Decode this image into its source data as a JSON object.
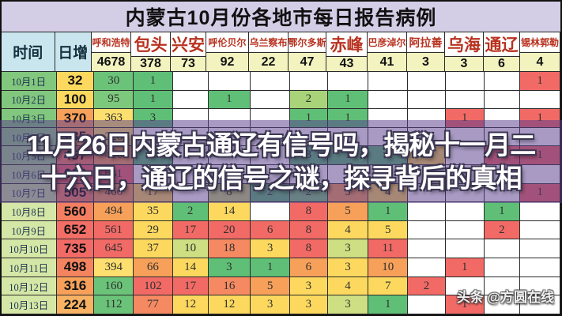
{
  "chart_data": {
    "type": "table",
    "title": "内蒙古10月份各地市每日报告病例",
    "time_label": "时间",
    "daily_label": "日增",
    "cities": [
      {
        "name": "呼和浩特",
        "total": "4678"
      },
      {
        "name": "包头",
        "total": "378"
      },
      {
        "name": "兴安",
        "total": "73"
      },
      {
        "name": "呼伦贝尔",
        "total": "92"
      },
      {
        "name": "乌兰察布",
        "total": "22"
      },
      {
        "name": "鄂尔多斯",
        "total": "47"
      },
      {
        "name": "赤峰",
        "total": "43"
      },
      {
        "name": "巴彦淖尔",
        "total": "41"
      },
      {
        "name": "阿拉善",
        "total": "3"
      },
      {
        "name": "乌海",
        "total": "3"
      },
      {
        "name": "通辽",
        "total": "6"
      },
      {
        "name": "锡林郭勒",
        "total": "4"
      }
    ],
    "rows": [
      {
        "date": "10月1日",
        "date_bg": "#82c77e",
        "daily": "32",
        "daily_bg": "#fcd95e",
        "cells": [
          {
            "v": "30",
            "bg": "#6ac379"
          },
          {
            "v": "1",
            "bg": "#5fbf77"
          },
          null,
          null,
          null,
          null,
          null,
          null,
          null,
          null,
          null,
          {
            "v": "1",
            "bg": "#f26a66"
          }
        ]
      },
      {
        "date": "10月2日",
        "date_bg": "#82c77e",
        "daily": "100",
        "daily_bg": "#fcd95e",
        "cells": [
          {
            "v": "95",
            "bg": "#7cc87c"
          },
          {
            "v": "1",
            "bg": "#5fbf77"
          },
          null,
          {
            "v": "1",
            "bg": "#5fbf77"
          },
          null,
          {
            "v": "2",
            "bg": "#a8d378"
          },
          {
            "v": "1",
            "bg": "#5fbf77"
          },
          null,
          null,
          null,
          null,
          null
        ]
      },
      {
        "date": "10月3日",
        "date_bg": "#82c77e",
        "daily": "370",
        "daily_bg": "#f6a05a",
        "cells": [
          {
            "v": "363",
            "bg": "#fcdf6e"
          },
          {
            "v": "3",
            "bg": "#5fbf77"
          },
          null,
          null,
          null,
          {
            "v": "1",
            "bg": "#5fbf77"
          },
          {
            "v": "1",
            "bg": "#5fbf77"
          },
          null,
          null,
          {
            "v": "1",
            "bg": "#f26a66"
          },
          null,
          {
            "v": "1",
            "bg": "#f26a66"
          }
        ]
      },
      {
        "date": "10月4日",
        "date_bg": "#90cc86",
        "daily": "235",
        "daily_bg": "#f6a05a",
        "cells": [
          {
            "v": "226",
            "bg": "#fcdf6e"
          },
          null,
          null,
          null,
          null,
          null,
          null,
          null,
          null,
          null,
          null,
          null
        ]
      },
      {
        "date": "10月5日",
        "date_bg": "#9fd28e",
        "daily": "457",
        "daily_bg": "#f47f60",
        "cells": [
          {
            "v": "446",
            "bg": "#f6a05a"
          },
          {
            "v": "1",
            "bg": "#5fbf77"
          },
          null,
          null,
          null,
          {
            "v": "3",
            "bg": "#5fbf77"
          },
          {
            "v": "1",
            "bg": "#5fbf77"
          },
          {
            "v": "2",
            "bg": "#5fbf77"
          },
          {
            "v": "1",
            "bg": "#fcd95e"
          },
          null,
          {
            "v": "2",
            "bg": "#f26a66"
          },
          {
            "v": "1",
            "bg": "#f26a66"
          }
        ]
      },
      {
        "date": "10月6日",
        "date_bg": "#b2d896",
        "daily": "668",
        "daily_bg": "#f26a66",
        "cells": [
          {
            "v": "631",
            "bg": "#f26a66"
          },
          null,
          null,
          null,
          null,
          null,
          null,
          null,
          null,
          null,
          null,
          null
        ]
      },
      {
        "date": "10月7日",
        "date_bg": "#c4df9e",
        "daily": "505",
        "daily_bg": "#f4845f",
        "cells": [
          {
            "v": "466",
            "bg": "#f6a05a"
          },
          {
            "v": "17",
            "bg": "#fcd95e"
          },
          null,
          {
            "v": "8",
            "bg": "#c6da7a"
          },
          {
            "v": "2",
            "bg": "#5fbf77"
          },
          {
            "v": "2",
            "bg": "#7cc87c"
          },
          {
            "v": "5",
            "bg": "#f6a05a"
          },
          {
            "v": "4",
            "bg": "#fcd95e"
          },
          null,
          null,
          null,
          {
            "v": "1",
            "bg": "#f26a66"
          }
        ]
      },
      {
        "date": "10月8日",
        "date_bg": "#d5e7a6",
        "daily": "560",
        "daily_bg": "#f47f60",
        "cells": [
          {
            "v": "494",
            "bg": "#f6a05a"
          },
          {
            "v": "35",
            "bg": "#fcd95e"
          },
          {
            "v": "2",
            "bg": "#5fbf77"
          },
          {
            "v": "14",
            "bg": "#fcd95e"
          },
          null,
          {
            "v": "8",
            "bg": "#f26a66"
          },
          {
            "v": "5",
            "bg": "#f6a05a"
          },
          {
            "v": "1",
            "bg": "#5fbf77"
          },
          null,
          null,
          {
            "v": "1",
            "bg": "#5fbf77"
          },
          null
        ]
      },
      {
        "date": "10月9日",
        "date_bg": "#d5e7a6",
        "daily": "652",
        "daily_bg": "#f26e66",
        "cells": [
          {
            "v": "561",
            "bg": "#f26a66"
          },
          {
            "v": "29",
            "bg": "#fcd95e"
          },
          {
            "v": "17",
            "bg": "#f26a66"
          },
          {
            "v": "20",
            "bg": "#f26a66"
          },
          {
            "v": "6",
            "bg": "#f26a66"
          },
          {
            "v": "8",
            "bg": "#f26a66"
          },
          {
            "v": "4",
            "bg": "#fcd95e"
          },
          {
            "v": "5",
            "bg": "#fcd95e"
          },
          null,
          null,
          {
            "v": "2",
            "bg": "#f26a66"
          },
          null
        ]
      },
      {
        "date": "10月10日",
        "date_bg": "#d5e7a6",
        "daily": "735",
        "daily_bg": "#f26a66",
        "cells": [
          {
            "v": "645",
            "bg": "#f26a66"
          },
          {
            "v": "37",
            "bg": "#fcd95e"
          },
          {
            "v": "10",
            "bg": "#cede82"
          },
          {
            "v": "18",
            "bg": "#f58a62"
          },
          {
            "v": "3",
            "bg": "#fcd95e"
          },
          {
            "v": "8",
            "bg": "#f26a66"
          },
          {
            "v": "3",
            "bg": "#cede82"
          },
          {
            "v": "11",
            "bg": "#f26a66"
          },
          null,
          null,
          null,
          null
        ]
      },
      {
        "date": "10月11日",
        "date_bg": "#d5e7a6",
        "daily": "498",
        "daily_bg": "#f4845f",
        "cells": [
          {
            "v": "394",
            "bg": "#fcdf6e"
          },
          {
            "v": "66",
            "bg": "#f6a05a"
          },
          {
            "v": "14",
            "bg": "#fcd95e"
          },
          {
            "v": "3",
            "bg": "#5fbf77"
          },
          {
            "v": "1",
            "bg": "#5fbf77"
          },
          {
            "v": "6",
            "bg": "#f6a05a"
          },
          {
            "v": "3",
            "bg": "#fcd95e"
          },
          {
            "v": "10",
            "bg": "#f6a05a"
          },
          null,
          {
            "v": "1",
            "bg": "#f26a66"
          },
          null,
          null
        ]
      },
      {
        "date": "10月12日",
        "date_bg": "#d5e7a6",
        "daily": "316",
        "daily_bg": "#f6a05a",
        "cells": [
          {
            "v": "160",
            "bg": "#6ac379"
          },
          {
            "v": "102",
            "bg": "#f26a66"
          },
          {
            "v": "17",
            "bg": "#f26a66"
          },
          {
            "v": "16",
            "bg": "#f58a62"
          },
          {
            "v": "5",
            "bg": "#f6a05a"
          },
          {
            "v": "3",
            "bg": "#fcd95e"
          },
          {
            "v": "4",
            "bg": "#fcd95e"
          },
          {
            "v": "7",
            "bg": "#fcd95e"
          },
          {
            "v": "2",
            "bg": "#f26a66"
          },
          null,
          null,
          null
        ]
      },
      {
        "date": "10月13日",
        "date_bg": "#d5e7a6",
        "daily": "224",
        "daily_bg": "#f8b264",
        "cells": [
          {
            "v": "112",
            "bg": "#6ac379"
          },
          {
            "v": "77",
            "bg": "#f58a62"
          },
          {
            "v": "12",
            "bg": "#fcd95e"
          },
          {
            "v": "12",
            "bg": "#fcd95e"
          },
          {
            "v": "3",
            "bg": "#fcd95e"
          },
          {
            "v": "3",
            "bg": "#fcd95e"
          },
          {
            "v": "3",
            "bg": "#cede82"
          },
          {
            "v": "1",
            "bg": "#5fbf77"
          },
          null,
          {
            "v": "1",
            "bg": "#f26a66"
          },
          null,
          null
        ]
      }
    ]
  },
  "overlay": {
    "line1": "11月26日内蒙古通辽有信号吗，揭秘十一月二",
    "line2": "十六日，通辽的信号之谜，探寻背后的真相"
  },
  "watermark": {
    "text": "头条 @方圆在线"
  },
  "colors": {
    "title_bg": "#d4cde6",
    "corner_header_bg": "#c9e6ef",
    "totals_bg": "#f3f3c0",
    "city_name_text": "#b8321f",
    "overlay_bg": "rgba(88,62,140,0.52)",
    "scale_green": "#5fbf77",
    "scale_yellow": "#fcd95e",
    "scale_orange": "#f6a05a",
    "scale_red": "#f26a66"
  }
}
